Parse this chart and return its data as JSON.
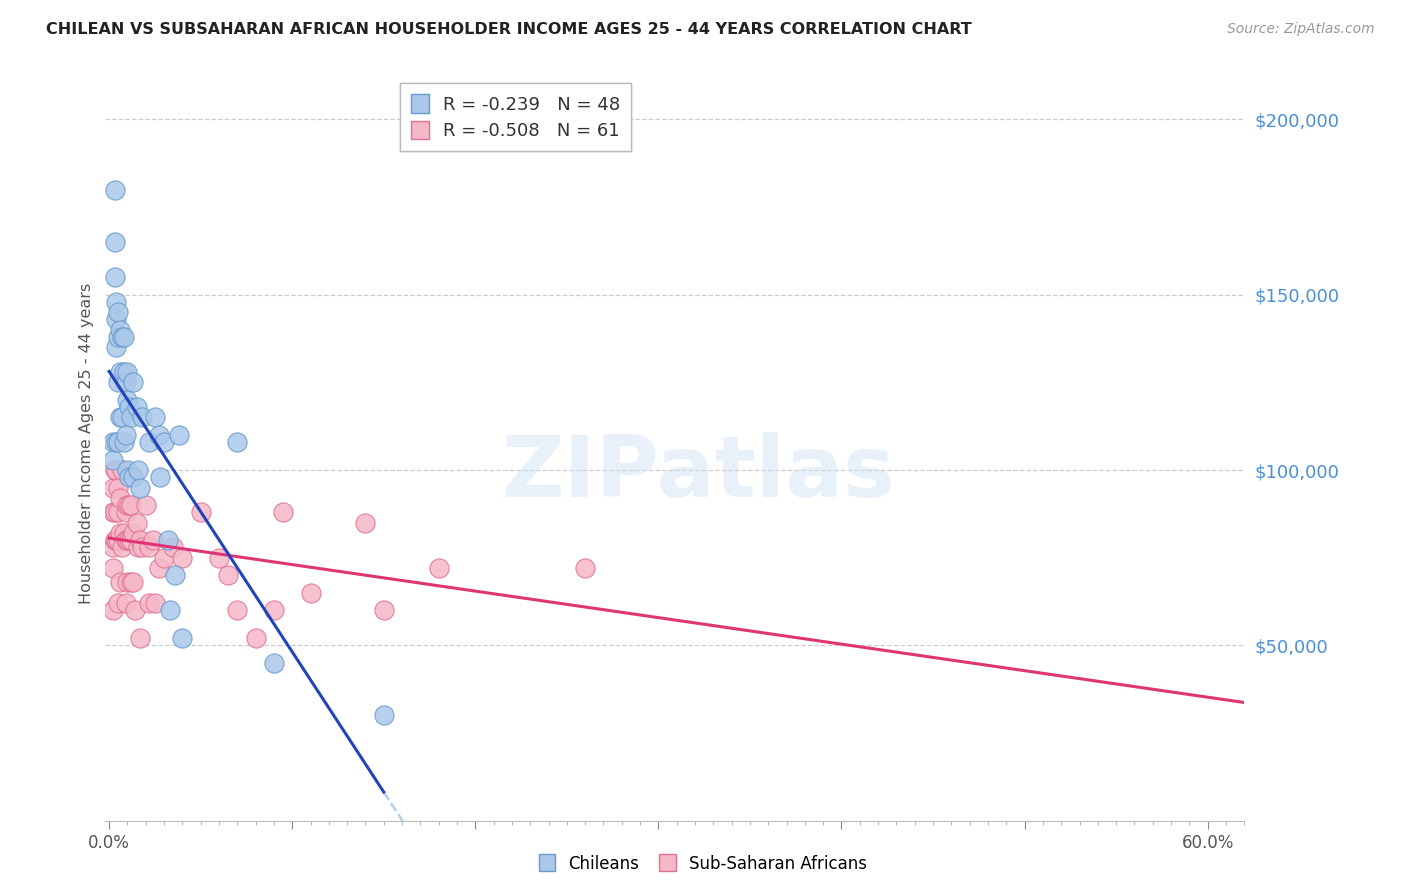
{
  "title": "CHILEAN VS SUBSAHARAN AFRICAN HOUSEHOLDER INCOME AGES 25 - 44 YEARS CORRELATION CHART",
  "source": "Source: ZipAtlas.com",
  "ylabel": "Householder Income Ages 25 - 44 years",
  "ytick_vals": [
    50000,
    100000,
    150000,
    200000
  ],
  "ylim": [
    0,
    215000
  ],
  "xlim": [
    -0.002,
    0.62
  ],
  "legend1_r": "-0.239",
  "legend1_n": "48",
  "legend2_r": "-0.508",
  "legend2_n": "61",
  "chilean_color": "#aac8ea",
  "chilean_edge": "#6699cc",
  "chilean_line_color": "#2244bb",
  "subsaharan_color": "#f5b8c8",
  "subsaharan_edge": "#e07090",
  "subsaharan_line_color": "#e03575",
  "dashed_color": "#aaccee",
  "chileans_x": [
    0.002,
    0.002,
    0.003,
    0.003,
    0.003,
    0.004,
    0.004,
    0.004,
    0.004,
    0.005,
    0.005,
    0.005,
    0.005,
    0.006,
    0.006,
    0.006,
    0.007,
    0.007,
    0.008,
    0.008,
    0.008,
    0.009,
    0.009,
    0.01,
    0.01,
    0.01,
    0.011,
    0.011,
    0.012,
    0.013,
    0.013,
    0.015,
    0.016,
    0.017,
    0.018,
    0.022,
    0.025,
    0.027,
    0.028,
    0.03,
    0.032,
    0.033,
    0.036,
    0.038,
    0.04,
    0.07,
    0.09,
    0.15
  ],
  "chileans_y": [
    108000,
    103000,
    180000,
    165000,
    155000,
    148000,
    143000,
    135000,
    108000,
    145000,
    138000,
    125000,
    108000,
    140000,
    128000,
    115000,
    138000,
    115000,
    138000,
    128000,
    108000,
    125000,
    110000,
    128000,
    120000,
    100000,
    118000,
    98000,
    115000,
    125000,
    98000,
    118000,
    100000,
    95000,
    115000,
    108000,
    115000,
    110000,
    98000,
    108000,
    80000,
    60000,
    70000,
    110000,
    52000,
    108000,
    45000,
    30000
  ],
  "subsaharan_x": [
    0.002,
    0.002,
    0.002,
    0.002,
    0.002,
    0.003,
    0.003,
    0.003,
    0.004,
    0.004,
    0.005,
    0.005,
    0.005,
    0.005,
    0.006,
    0.006,
    0.006,
    0.007,
    0.007,
    0.008,
    0.008,
    0.009,
    0.009,
    0.009,
    0.01,
    0.01,
    0.01,
    0.011,
    0.011,
    0.012,
    0.012,
    0.012,
    0.013,
    0.013,
    0.014,
    0.015,
    0.016,
    0.017,
    0.017,
    0.018,
    0.02,
    0.022,
    0.022,
    0.024,
    0.025,
    0.027,
    0.03,
    0.035,
    0.04,
    0.05,
    0.06,
    0.065,
    0.07,
    0.08,
    0.09,
    0.095,
    0.11,
    0.14,
    0.15,
    0.18,
    0.26
  ],
  "subsaharan_y": [
    95000,
    88000,
    78000,
    72000,
    60000,
    100000,
    88000,
    80000,
    100000,
    80000,
    95000,
    88000,
    80000,
    62000,
    92000,
    82000,
    68000,
    100000,
    78000,
    125000,
    82000,
    88000,
    80000,
    62000,
    90000,
    80000,
    68000,
    90000,
    80000,
    90000,
    80000,
    68000,
    82000,
    68000,
    60000,
    85000,
    78000,
    80000,
    52000,
    78000,
    90000,
    78000,
    62000,
    80000,
    62000,
    72000,
    75000,
    78000,
    75000,
    88000,
    75000,
    70000,
    60000,
    52000,
    60000,
    88000,
    65000,
    85000,
    60000,
    72000,
    72000
  ]
}
